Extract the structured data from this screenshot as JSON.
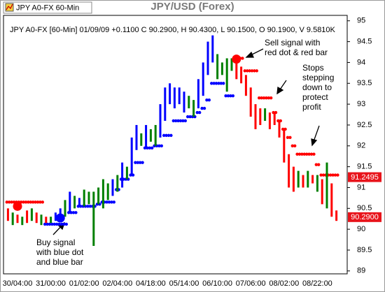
{
  "chart_data": {
    "type": "price-bars",
    "header": "JPY A0-FX 60-Min",
    "title": "JPY/USD (Forex)",
    "subtitle": "JPY A0-FX [60-Min] 01/09/09 +0.1100 C 90.2900, H 90.4300, L 90.1500, O 90.1900, V 9.5810K",
    "categories": [
      null,
      null,
      "30/04:00",
      null,
      null,
      null,
      null,
      null,
      null,
      "31/00:00",
      null,
      null,
      null,
      null,
      null,
      null,
      "01/02:00",
      null,
      null,
      null,
      null,
      null,
      null,
      "02/04:00",
      null,
      null,
      null,
      null,
      null,
      null,
      "04/18:00",
      null,
      null,
      null,
      null,
      null,
      null,
      "05/14:00",
      null,
      null,
      null,
      null,
      null,
      null,
      "06/10:00",
      null,
      null,
      null,
      null,
      null,
      null,
      "07/06:00",
      null,
      null,
      null,
      null,
      null,
      null,
      "08/02:00",
      null,
      null,
      null,
      null,
      null,
      null,
      "08/22:00",
      null,
      null,
      null,
      null
    ],
    "low": [
      90.2,
      90.1,
      90.15,
      90.1,
      90.15,
      90.2,
      90.15,
      90.1,
      90.15,
      90.15,
      90.2,
      90.25,
      90.3,
      90.4,
      90.5,
      90.55,
      90.55,
      90.6,
      89.6,
      90.6,
      90.5,
      90.7,
      90.8,
      90.9,
      91.0,
      91.2,
      91.3,
      91.9,
      92.0,
      91.95,
      92.1,
      92.0,
      92.2,
      92.6,
      93.0,
      92.9,
      93.0,
      92.8,
      92.9,
      92.7,
      92.9,
      93.2,
      93.7,
      94.0,
      93.6,
      93.7,
      93.3,
      93.8,
      93.6,
      93.5,
      93.2,
      92.7,
      92.4,
      92.5,
      92.6,
      92.4,
      92.5,
      92.2,
      91.6,
      91.0,
      90.9,
      91.0,
      91.0,
      91.0,
      91.1,
      90.9,
      90.6,
      90.5,
      90.3,
      90.2
    ],
    "high": [
      90.5,
      90.4,
      90.35,
      90.3,
      90.45,
      90.5,
      90.4,
      90.35,
      90.3,
      90.3,
      90.4,
      90.5,
      90.7,
      90.9,
      90.8,
      90.75,
      90.95,
      90.9,
      90.9,
      91.0,
      91.2,
      91.1,
      91.2,
      91.3,
      91.6,
      91.5,
      92.2,
      92.5,
      92.3,
      92.5,
      92.4,
      92.5,
      93.0,
      93.4,
      93.5,
      93.4,
      93.4,
      93.3,
      93.2,
      93.1,
      93.6,
      94.0,
      94.5,
      94.65,
      94.2,
      94.0,
      94.1,
      94.1,
      94.0,
      93.9,
      93.7,
      93.4,
      93.0,
      92.9,
      92.9,
      92.8,
      92.8,
      92.6,
      92.4,
      91.8,
      91.5,
      91.4,
      91.3,
      91.4,
      91.3,
      91.3,
      91.2,
      91.6,
      91.1,
      90.45
    ],
    "bar_colors": [
      "red",
      "green",
      "red",
      "green",
      "red",
      "green",
      "red",
      "green",
      "red",
      "green",
      "blue",
      "blue",
      "green",
      "blue",
      "green",
      "blue",
      "green",
      "green",
      "green",
      "green",
      "green",
      "green",
      "blue",
      "green",
      "blue",
      "green",
      "blue",
      "blue",
      "green",
      "blue",
      "green",
      "green",
      "blue",
      "blue",
      "blue",
      "blue",
      "blue",
      "blue",
      "green",
      "green",
      "blue",
      "blue",
      "blue",
      "blue",
      "green",
      "green",
      "green",
      "green",
      "red",
      "red",
      "red",
      "red",
      "red",
      "red",
      "green",
      "red",
      "red",
      "red",
      "red",
      "red",
      "red",
      "green",
      "red",
      "green",
      "red",
      "green",
      "red",
      "green",
      "red",
      "red"
    ],
    "stops": [
      90.65,
      90.65,
      90.65,
      90.65,
      90.65,
      90.65,
      90.65,
      90.65,
      90.12,
      90.12,
      90.12,
      90.12,
      90.12,
      90.4,
      90.4,
      90.55,
      90.55,
      90.55,
      90.55,
      90.6,
      90.65,
      90.65,
      90.65,
      90.95,
      91.2,
      91.2,
      91.3,
      91.6,
      91.6,
      91.95,
      91.95,
      92.0,
      92.0,
      92.25,
      92.25,
      92.6,
      92.6,
      92.6,
      92.7,
      92.7,
      92.8,
      92.9,
      93.1,
      93.5,
      93.5,
      93.5,
      93.2,
      93.2,
      94.1,
      94.1,
      93.8,
      93.8,
      93.8,
      93.15,
      93.15,
      93.15,
      92.8,
      92.6,
      92.4,
      92.2,
      92.0,
      91.8,
      91.8,
      91.8,
      91.8,
      91.55,
      91.3,
      91.3,
      91.3,
      91.3
    ],
    "stop_colors": [
      "red",
      "red",
      "red",
      "red",
      "red",
      "red",
      "red",
      "red",
      "blue",
      "blue",
      "blue",
      "blue",
      "blue",
      "blue",
      "blue",
      "blue",
      "blue",
      "blue",
      "blue",
      "blue",
      "blue",
      "blue",
      "blue",
      "blue",
      "blue",
      "blue",
      "blue",
      "blue",
      "blue",
      "blue",
      "blue",
      "blue",
      "blue",
      "blue",
      "blue",
      "blue",
      "blue",
      "blue",
      "blue",
      "blue",
      "blue",
      "blue",
      "blue",
      "blue",
      "blue",
      "blue",
      "blue",
      "blue",
      "red",
      "red",
      "red",
      "red",
      "red",
      "red",
      "red",
      "red",
      "red",
      "red",
      "red",
      "red",
      "red",
      "red",
      "red",
      "red",
      "red",
      "red",
      "red",
      "red",
      "red",
      "red"
    ],
    "signals": [
      null,
      null,
      90.55,
      null,
      null,
      null,
      null,
      null,
      null,
      null,
      null,
      90.27,
      null,
      null,
      null,
      null,
      null,
      null,
      null,
      null,
      null,
      null,
      null,
      null,
      null,
      null,
      null,
      null,
      null,
      null,
      null,
      null,
      null,
      null,
      null,
      null,
      null,
      null,
      null,
      null,
      null,
      null,
      null,
      null,
      null,
      null,
      null,
      null,
      94.08,
      null,
      null,
      null,
      null,
      null,
      null,
      null,
      null,
      null,
      null,
      null,
      null,
      null,
      null,
      null,
      null,
      null,
      null,
      null,
      null,
      null
    ],
    "price_markers": [
      {
        "value": 91.2495,
        "label": "91.2495"
      },
      {
        "value": 90.29,
        "label": "90.2900"
      }
    ],
    "annotations": [
      {
        "lines": [
          "Buy signal",
          "with blue dot",
          "and blue bar"
        ]
      },
      {
        "lines": [
          "Sell signal with",
          "red dot & red bar"
        ]
      },
      {
        "lines": [
          "Stops",
          "stepping",
          "down to",
          "protect",
          "profit"
        ]
      }
    ],
    "ylim": [
      88.93,
      95.13
    ],
    "yticks": [
      89,
      89.5,
      90,
      90.5,
      91,
      91.5,
      92,
      92.5,
      93,
      93.5,
      94,
      94.5,
      95
    ]
  }
}
